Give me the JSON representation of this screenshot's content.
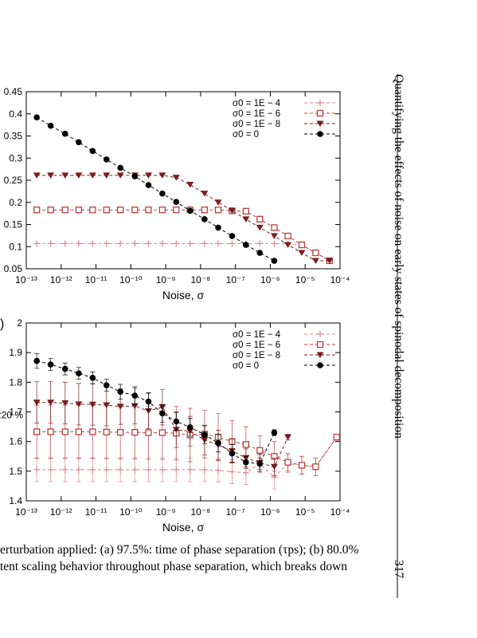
{
  "sidebar": {
    "running_title": "Quantifying the effects of noise on early states of spinodal decomposition",
    "page_number": "317"
  },
  "caption": {
    "line1": "erturbation applied: (a) 97.5%: time of phase separation (τps); (b) 80.0%",
    "line2": "tent scaling behavior throughout phase separation, which breaks down"
  },
  "chart_data": [
    {
      "type": "line",
      "xlabel": "Noise, σ",
      "ylabel": "",
      "x_scale": "log",
      "xlim": [
        1e-13,
        0.0001
      ],
      "ylim": [
        0.05,
        0.45
      ],
      "x_ticks": [
        "10⁻¹³",
        "10⁻¹²",
        "10⁻¹¹",
        "10⁻¹⁰",
        "10⁻⁹",
        "10⁻⁸",
        "10⁻⁷",
        "10⁻⁶",
        "10⁻⁵",
        "10⁻⁴"
      ],
      "y_ticks": [
        "0.05",
        "0.1",
        "0.15",
        "0.2",
        "0.25",
        "0.3",
        "0.35",
        "0.4",
        "0.45"
      ],
      "legend_position": "top-right",
      "x": [
        2e-13,
        5e-13,
        1.3e-12,
        3.2e-12,
        8e-12,
        2e-11,
        5e-11,
        1.3e-10,
        3.2e-10,
        8e-10,
        2e-09,
        5e-09,
        1.3e-08,
        3.2e-08,
        8e-08,
        2e-07,
        5e-07,
        1.3e-06,
        3.2e-06,
        8e-06,
        2e-05,
        5e-05
      ],
      "series": [
        {
          "name": "σ0 = 1E − 4",
          "marker": "plus",
          "color": "#d9888c",
          "values": [
            0.107,
            0.107,
            0.107,
            0.107,
            0.107,
            0.107,
            0.107,
            0.107,
            0.107,
            0.107,
            0.107,
            0.107,
            0.107,
            0.107,
            0.107,
            0.107,
            0.107,
            0.107,
            0.106,
            0.103,
            0.087,
            0.068
          ]
        },
        {
          "name": "σ0 = 1E − 6",
          "marker": "open-square",
          "color": "#b5403f",
          "values": [
            0.183,
            0.183,
            0.183,
            0.183,
            0.183,
            0.183,
            0.183,
            0.183,
            0.183,
            0.183,
            0.183,
            0.183,
            0.183,
            0.183,
            0.181,
            0.18,
            0.162,
            0.143,
            0.124,
            0.104,
            0.086,
            0.068
          ]
        },
        {
          "name": "σ0 = 1E − 8",
          "marker": "triangle-down",
          "color": "#7a1d20",
          "values": [
            0.261,
            0.261,
            0.261,
            0.261,
            0.261,
            0.261,
            0.261,
            0.261,
            0.261,
            0.261,
            0.256,
            0.24,
            0.22,
            0.2,
            0.181,
            0.162,
            0.143,
            0.124,
            0.104,
            0.086,
            0.068,
            0.068
          ]
        },
        {
          "name": "σ0 = 0",
          "marker": "filled-circle",
          "color": "#000000",
          "values": [
            0.392,
            0.373,
            0.355,
            0.336,
            0.316,
            0.297,
            0.278,
            0.259,
            0.239,
            0.22,
            0.201,
            0.181,
            0.162,
            0.143,
            0.124,
            0.104,
            0.086,
            0.068,
            null,
            null,
            null,
            null
          ]
        }
      ]
    },
    {
      "type": "line",
      "xlabel": "Noise, σ",
      "ylabel": "τ20 %",
      "x_scale": "log",
      "xlim": [
        1e-13,
        0.0001
      ],
      "ylim": [
        1.4,
        2.0
      ],
      "x_ticks": [
        "10⁻¹³",
        "10⁻¹²",
        "10⁻¹¹",
        "10⁻¹⁰",
        "10⁻⁹",
        "10⁻⁸",
        "10⁻⁷",
        "10⁻⁶",
        "10⁻⁵",
        "10⁻⁴"
      ],
      "y_ticks": [
        "1.4",
        "1.5",
        "1.6",
        "1.7",
        "1.8",
        "1.9",
        "2"
      ],
      "legend_position": "top-right",
      "x": [
        2e-13,
        5e-13,
        1.3e-12,
        3.2e-12,
        8e-12,
        2e-11,
        5e-11,
        1.3e-10,
        3.2e-10,
        8e-10,
        2e-09,
        5e-09,
        1.3e-08,
        3.2e-08,
        8e-08,
        2e-07,
        5e-07,
        1.3e-06,
        3.2e-06,
        8e-06,
        2e-05,
        8e-05
      ],
      "series": [
        {
          "name": "σ0 = 1E − 4",
          "marker": "plus",
          "color": "#d9888c",
          "values": [
            1.505,
            1.505,
            1.505,
            1.505,
            1.505,
            1.505,
            1.505,
            1.505,
            1.505,
            1.505,
            1.505,
            1.505,
            1.505,
            1.503,
            1.498,
            1.495,
            1.525,
            1.48,
            1.525,
            1.52,
            1.515,
            1.615
          ],
          "errors": [
            0.04,
            0.04,
            0.04,
            0.04,
            0.04,
            0.04,
            0.04,
            0.04,
            0.04,
            0.04,
            0.04,
            0.04,
            0.04,
            0.04,
            0.04,
            0.04,
            0.03,
            0.04,
            0.03,
            0.03,
            0.03,
            0.01
          ]
        },
        {
          "name": "σ0 = 1E − 6",
          "marker": "open-square",
          "color": "#b5403f",
          "values": [
            1.633,
            1.633,
            1.633,
            1.633,
            1.633,
            1.632,
            1.631,
            1.631,
            1.63,
            1.63,
            1.628,
            1.622,
            1.625,
            1.615,
            1.6,
            1.59,
            1.57,
            1.55,
            1.53,
            1.52,
            1.515,
            1.615
          ],
          "errors": [
            0.09,
            0.09,
            0.09,
            0.09,
            0.09,
            0.09,
            0.09,
            0.09,
            0.09,
            0.09,
            0.09,
            0.09,
            0.08,
            0.08,
            0.07,
            0.06,
            0.05,
            0.05,
            0.03,
            0.03,
            0.03,
            0.01
          ]
        },
        {
          "name": "σ0 = 1E − 8",
          "marker": "triangle-down",
          "color": "#7a1d20",
          "values": [
            1.732,
            1.732,
            1.73,
            1.726,
            1.725,
            1.723,
            1.718,
            1.72,
            1.703,
            1.716,
            1.64,
            1.635,
            1.605,
            1.588,
            1.568,
            1.545,
            1.528,
            1.515,
            1.615,
            null,
            null,
            null
          ],
          "errors": [
            0.07,
            0.07,
            0.07,
            0.07,
            0.07,
            0.07,
            0.06,
            0.06,
            0.06,
            0.06,
            0.06,
            0.05,
            0.05,
            0.05,
            0.04,
            0.03,
            0.03,
            0.03,
            0.01,
            0,
            0,
            0
          ]
        },
        {
          "name": "σ0 = 0",
          "marker": "filled-circle",
          "color": "#000000",
          "values": [
            1.872,
            1.86,
            1.845,
            1.83,
            1.815,
            1.79,
            1.768,
            1.755,
            1.735,
            1.695,
            1.668,
            1.648,
            1.623,
            1.595,
            1.56,
            1.53,
            1.525,
            1.63,
            null,
            null,
            null,
            null
          ],
          "errors": [
            0.025,
            0.02,
            0.02,
            0.02,
            0.02,
            0.02,
            0.025,
            0.03,
            0.03,
            0.03,
            0.03,
            0.03,
            0.03,
            0.03,
            0.03,
            0.02,
            0.02,
            0.01,
            0,
            0,
            0,
            0
          ]
        }
      ]
    }
  ]
}
